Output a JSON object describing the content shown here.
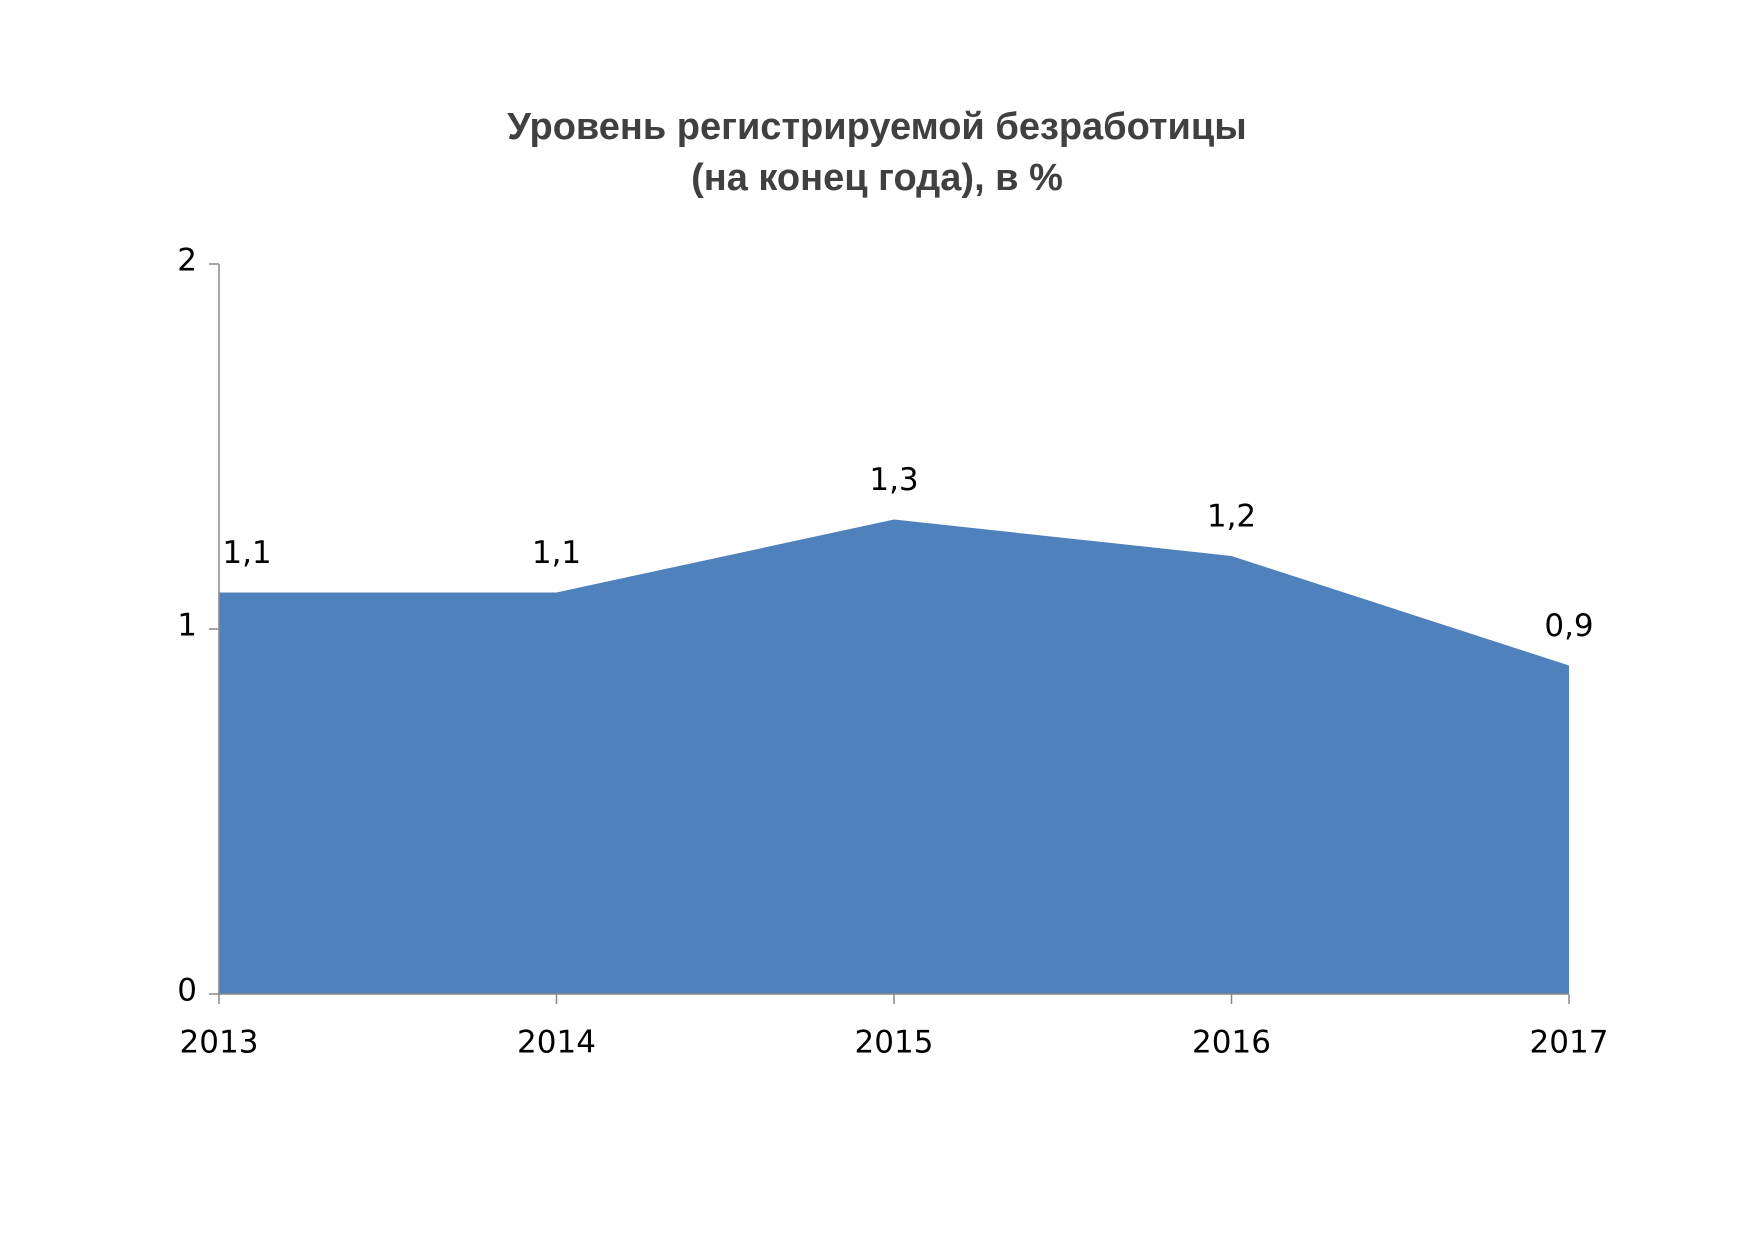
{
  "chart_data": {
    "type": "area",
    "title": [
      "Уровень регистрируемой безработицы",
      "(на конец года), в %"
    ],
    "categories": [
      "2013",
      "2014",
      "2015",
      "2016",
      "2017"
    ],
    "values": [
      1.1,
      1.1,
      1.3,
      1.2,
      0.9
    ],
    "value_labels": [
      "1,1",
      "1,1",
      "1,3",
      "1,2",
      "0,9"
    ],
    "color": "#4f81bd",
    "ylim": [
      0,
      2
    ],
    "yticks": [
      0,
      1,
      2
    ],
    "grid": false
  }
}
